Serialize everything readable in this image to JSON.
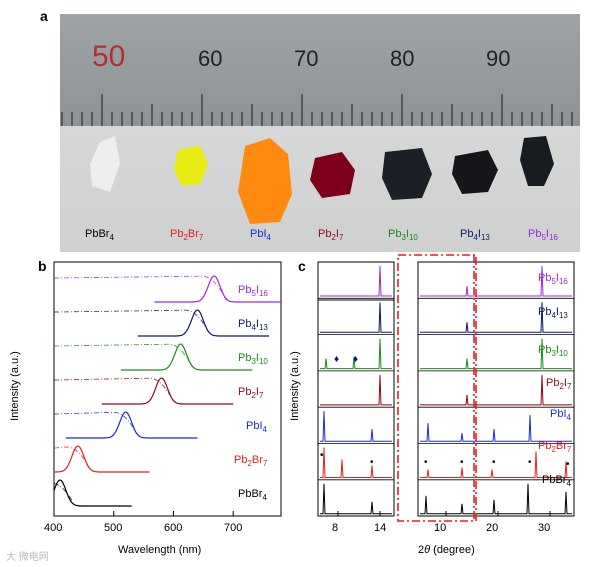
{
  "panels": {
    "a": "a",
    "b": "b",
    "c": "c"
  },
  "ruler": {
    "numbers": [
      "50",
      "60",
      "70",
      "80",
      "90"
    ]
  },
  "compounds": [
    {
      "main": "PbBr",
      "sub": "4",
      "color": "#000000"
    },
    {
      "main": "Pb",
      "sub": "2",
      "main2": "Br",
      "sub2": "7",
      "color": "#e02020"
    },
    {
      "main": "PbI",
      "sub": "4",
      "color": "#1a2ad8"
    },
    {
      "main": "Pb",
      "sub": "2",
      "main2": "I",
      "sub2": "7",
      "color": "#8b0a1a"
    },
    {
      "main": "Pb",
      "sub": "3",
      "main2": "I",
      "sub2": "10",
      "color": "#1a8a1a"
    },
    {
      "main": "Pb",
      "sub": "4",
      "main2": "I",
      "sub2": "13",
      "color": "#0a1a6a"
    },
    {
      "main": "Pb",
      "sub": "5",
      "main2": "I",
      "sub2": "16",
      "color": "#9a2ad8"
    }
  ],
  "chart_data": [
    {
      "type": "line",
      "title": "",
      "xlabel": "Wavelength (nm)",
      "ylabel": "Intensity (a.u.)",
      "xlim": [
        400,
        780
      ],
      "xticks": [
        "400",
        "500",
        "600",
        "700"
      ],
      "series": [
        {
          "name": "PbBr4",
          "peak_nm": 410
        },
        {
          "name": "Pb2Br7",
          "peak_nm": 440
        },
        {
          "name": "PbI4",
          "peak_nm": 520
        },
        {
          "name": "Pb2I7",
          "peak_nm": 580
        },
        {
          "name": "Pb3I10",
          "peak_nm": 612
        },
        {
          "name": "Pb4I13",
          "peak_nm": 640
        },
        {
          "name": "Pb5I16",
          "peak_nm": 668
        }
      ]
    },
    {
      "type": "line",
      "title": "",
      "xlabel": "2θ (degree)",
      "ylabel": "Intensity (a.u.)",
      "xticks_left": [
        "8",
        "14"
      ],
      "xticks_right": [
        "10",
        "20",
        "30"
      ],
      "markers": {
        "dot": "•",
        "diamond": "♦"
      },
      "series": [
        "Pb5I16",
        "Pb4I13",
        "Pb3I10",
        "Pb2I7",
        "PbI4",
        "Pb2Br7",
        "PbBr4"
      ]
    }
  ],
  "axis": {
    "b_x": "Wavelength (nm)",
    "b_y": "Intensity (a.u.)",
    "c_x_main": "2",
    "c_x_theta": "θ",
    "c_x_unit": " (degree)",
    "c_y": "Intensity (a.u.)",
    "b_ticks": [
      "400",
      "500",
      "600",
      "700"
    ],
    "c_ticks_left": [
      "8",
      "14"
    ],
    "c_ticks_right": [
      "10",
      "20",
      "30"
    ]
  },
  "watermark": "大 微电网"
}
